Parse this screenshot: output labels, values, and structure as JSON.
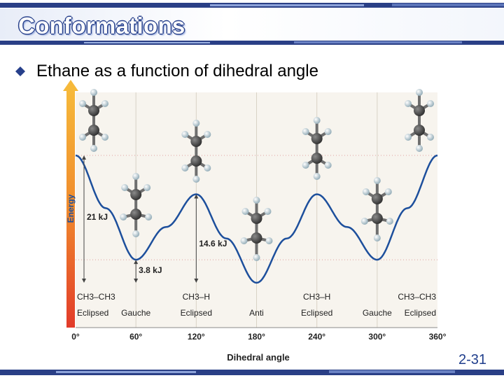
{
  "slide": {
    "title": "Conformations",
    "bullet": "Ethane as a function of dihedral angle",
    "slide_number": "2-31",
    "accent_color": "#27408b"
  },
  "chart_data": {
    "type": "line",
    "xlabel": "Dihedral angle",
    "ylabel": "Energy",
    "x_ticks": [
      "0°",
      "60°",
      "120°",
      "180°",
      "240°",
      "300°",
      "360°"
    ],
    "xlim": [
      0,
      360
    ],
    "ylim": [
      0,
      22
    ],
    "curve_color": "#1d4f9c",
    "series": [
      {
        "x": [
          0,
          30,
          60,
          90,
          120,
          150,
          180,
          210,
          240,
          270,
          300,
          330,
          360
        ],
        "y": [
          21,
          12.3,
          3.8,
          9.2,
          14.6,
          7.3,
          0,
          7.3,
          14.6,
          9.2,
          3.8,
          12.3,
          21
        ]
      }
    ],
    "energy_annotations": [
      {
        "label": "21 kJ",
        "from": 0,
        "to": 21,
        "at_x": 0
      },
      {
        "label": "14.6 kJ",
        "from": 0,
        "to": 14.6,
        "at_x": 120
      },
      {
        "label": "3.8 kJ",
        "from": 0,
        "to": 3.8,
        "at_x": 60
      }
    ],
    "conformations": [
      {
        "x": 0,
        "line1": "CH3–CH3",
        "line2": "Eclipsed"
      },
      {
        "x": 60,
        "line1": "",
        "line2": "Gauche"
      },
      {
        "x": 120,
        "line1": "CH3–H",
        "line2": "Eclipsed"
      },
      {
        "x": 180,
        "line1": "",
        "line2": "Anti"
      },
      {
        "x": 240,
        "line1": "CH3–H",
        "line2": "Eclipsed"
      },
      {
        "x": 300,
        "line1": "",
        "line2": "Gauche"
      },
      {
        "x": 360,
        "line1": "CH3–CH3",
        "line2": "Eclipsed"
      }
    ]
  }
}
